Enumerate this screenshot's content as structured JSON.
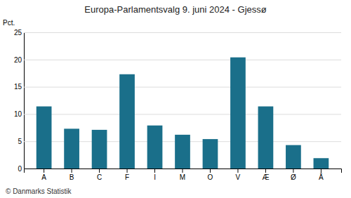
{
  "chart_data": {
    "type": "bar",
    "title": "Europa-Parlamentsvalg 9. juni 2024 - Gjessø",
    "ylabel": "Pct.",
    "footer": "© Danmarks Statistik",
    "categories": [
      "A",
      "B",
      "C",
      "F",
      "I",
      "M",
      "O",
      "V",
      "Æ",
      "Ø",
      "Å"
    ],
    "values": [
      11.4,
      7.3,
      7.1,
      17.3,
      7.9,
      6.2,
      5.4,
      20.4,
      11.4,
      4.3,
      1.9
    ],
    "color": "#1a6f8a",
    "ylim": [
      0,
      25
    ],
    "yticks": [
      0,
      5,
      10,
      15,
      20,
      25
    ],
    "grid": true
  }
}
